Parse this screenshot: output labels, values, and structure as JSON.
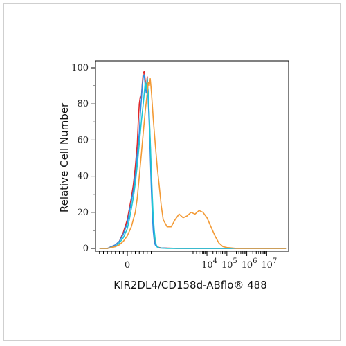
{
  "chart_data": {
    "type": "line",
    "title": "",
    "xlabel": "KIR2DL4/CD158d-ABflo® 488",
    "ylabel": "Relative Cell Number",
    "ylim": [
      0,
      100
    ],
    "y_ticks": [
      "0",
      "20",
      "40",
      "60",
      "80",
      "100"
    ],
    "x_scale": "biexponential",
    "x_ticks": [
      {
        "base": "0",
        "exp": ""
      },
      {
        "base": "10",
        "exp": "4"
      },
      {
        "base": "10",
        "exp": "5"
      },
      {
        "base": "10",
        "exp": "6"
      },
      {
        "base": "10",
        "exp": "7"
      }
    ],
    "grid": false,
    "legend": "none",
    "series": [
      {
        "color": "#e0292b",
        "x": [
          -1.4,
          -1.0,
          -0.8,
          -0.6,
          -0.4,
          -0.2,
          0.0,
          0.1,
          0.2,
          0.3,
          0.4,
          0.5,
          0.55,
          0.6,
          0.65,
          0.7,
          0.75,
          0.8,
          0.85,
          0.9,
          0.95,
          1.0,
          1.05,
          1.1,
          1.15,
          1.2,
          1.25,
          1.3,
          1.35,
          1.4,
          1.45,
          1.5,
          1.6,
          1.7,
          2.0,
          2.5,
          3.0,
          4.0,
          5.0,
          6.0,
          7.0,
          8.0
        ],
        "values": [
          0,
          0,
          1,
          2,
          4,
          9,
          16,
          22,
          28,
          35,
          45,
          58,
          70,
          80,
          84,
          83,
          91,
          97,
          98,
          93,
          88,
          95,
          85,
          72,
          58,
          40,
          25,
          14,
          7,
          3,
          1.5,
          1,
          0.5,
          0.3,
          0.2,
          0,
          0,
          0,
          0,
          0,
          0,
          0
        ]
      },
      {
        "color": "#2f8de4",
        "x": [
          -1.4,
          -1.0,
          -0.8,
          -0.6,
          -0.4,
          -0.2,
          0.0,
          0.1,
          0.2,
          0.3,
          0.4,
          0.5,
          0.6,
          0.65,
          0.7,
          0.75,
          0.8,
          0.85,
          0.9,
          0.95,
          1.0,
          1.05,
          1.1,
          1.15,
          1.2,
          1.25,
          1.3,
          1.35,
          1.4,
          1.5,
          1.6,
          2.0,
          3.0,
          4.0,
          5.0,
          6.0,
          7.0,
          8.0
        ],
        "values": [
          0,
          0,
          1,
          2,
          4,
          8,
          14,
          20,
          26,
          32,
          40,
          52,
          64,
          74,
          82,
          90,
          95,
          96,
          90,
          86,
          91,
          82,
          68,
          52,
          35,
          20,
          10,
          4,
          2,
          0.8,
          0.3,
          0.1,
          0,
          0,
          0,
          0,
          0,
          0
        ]
      },
      {
        "color": "#1fc7d4",
        "x": [
          -1.4,
          -1.0,
          -0.6,
          -0.4,
          -0.2,
          0.0,
          0.1,
          0.2,
          0.3,
          0.4,
          0.5,
          0.6,
          0.7,
          0.8,
          0.85,
          0.9,
          0.95,
          1.0,
          1.05,
          1.1,
          1.15,
          1.2,
          1.25,
          1.3,
          1.35,
          1.4,
          1.45,
          1.5,
          1.6,
          2.0,
          3.0,
          5.0,
          8.0
        ],
        "values": [
          0,
          0,
          1,
          3,
          6,
          11,
          16,
          22,
          28,
          36,
          46,
          58,
          70,
          80,
          86,
          92,
          88,
          94,
          86,
          74,
          60,
          44,
          30,
          18,
          10,
          5,
          2,
          1,
          0.3,
          0,
          0,
          0,
          0
        ]
      },
      {
        "color": "#f39a35",
        "x": [
          -1.4,
          -1.0,
          -0.8,
          -0.6,
          -0.4,
          -0.2,
          0.0,
          0.2,
          0.4,
          0.5,
          0.6,
          0.7,
          0.8,
          0.9,
          1.0,
          1.05,
          1.1,
          1.15,
          1.2,
          1.25,
          1.3,
          1.4,
          1.5,
          1.6,
          1.7,
          1.8,
          2.0,
          2.2,
          2.4,
          2.6,
          2.8,
          3.0,
          3.2,
          3.4,
          3.6,
          3.8,
          4.0,
          4.2,
          4.4,
          4.6,
          4.8,
          5.0,
          5.2,
          5.5,
          6.0,
          7.0,
          8.0
        ],
        "values": [
          0,
          0,
          0.5,
          1,
          2,
          4,
          7,
          12,
          20,
          28,
          40,
          52,
          64,
          76,
          86,
          92,
          90,
          94,
          88,
          80,
          72,
          58,
          45,
          35,
          24,
          16,
          12,
          12,
          16,
          19,
          17,
          18,
          20,
          19,
          21,
          20,
          17,
          12,
          7,
          3,
          1,
          0.5,
          0.3,
          0,
          0,
          0,
          0
        ]
      }
    ]
  }
}
